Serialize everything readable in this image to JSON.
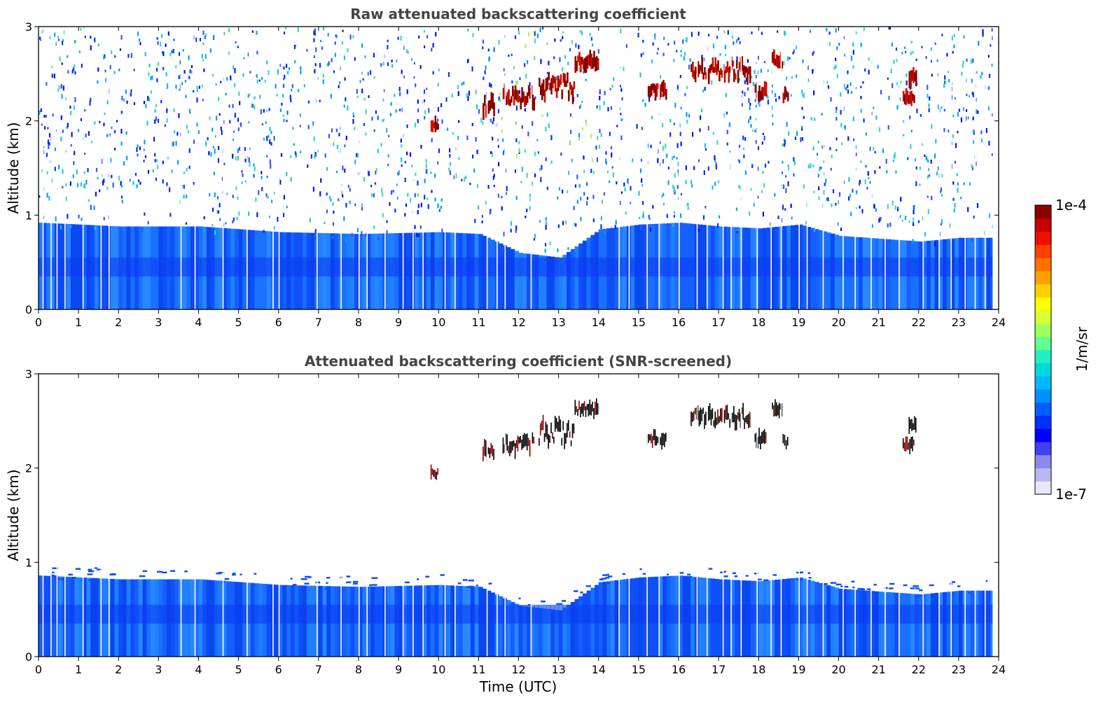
{
  "chart_data": [
    {
      "type": "heatmap",
      "title": "Raw attenuated backscattering coefficient",
      "xlabel": "",
      "ylabel": "Altitude (km)",
      "xlim": [
        0,
        24
      ],
      "ylim": [
        0,
        3
      ],
      "x_ticks": [
        "0",
        "1",
        "2",
        "3",
        "4",
        "5",
        "6",
        "7",
        "8",
        "9",
        "10",
        "11",
        "12",
        "13",
        "14",
        "15",
        "16",
        "17",
        "18",
        "19",
        "20",
        "21",
        "22",
        "23",
        "24"
      ],
      "y_ticks": [
        "0",
        "1",
        "2",
        "3"
      ],
      "screened": false,
      "boundary_layer_top_km": [
        [
          0,
          0.92
        ],
        [
          2,
          0.88
        ],
        [
          4,
          0.88
        ],
        [
          6,
          0.82
        ],
        [
          8,
          0.8
        ],
        [
          10,
          0.82
        ],
        [
          11,
          0.8
        ],
        [
          12,
          0.6
        ],
        [
          13,
          0.55
        ],
        [
          14,
          0.85
        ],
        [
          15,
          0.9
        ],
        [
          16,
          0.92
        ],
        [
          17,
          0.88
        ],
        [
          18,
          0.86
        ],
        [
          19,
          0.9
        ],
        [
          20,
          0.78
        ],
        [
          21,
          0.75
        ],
        [
          22,
          0.72
        ],
        [
          23,
          0.76
        ],
        [
          23.8,
          0.76
        ]
      ],
      "cloud_layers": [
        {
          "t_start": 9.8,
          "t_end": 10.0,
          "z_low_km": 1.88,
          "z_high_km": 2.0
        },
        {
          "t_start": 11.1,
          "t_end": 11.4,
          "z_low_km": 2.0,
          "z_high_km": 2.3
        },
        {
          "t_start": 11.6,
          "t_end": 12.4,
          "z_low_km": 2.1,
          "z_high_km": 2.4
        },
        {
          "t_start": 12.5,
          "t_end": 13.4,
          "z_low_km": 2.15,
          "z_high_km": 2.6
        },
        {
          "t_start": 13.4,
          "t_end": 14.0,
          "z_low_km": 2.52,
          "z_high_km": 2.72
        },
        {
          "t_start": 15.2,
          "t_end": 15.7,
          "z_low_km": 2.22,
          "z_high_km": 2.42
        },
        {
          "t_start": 16.3,
          "t_end": 17.8,
          "z_low_km": 2.4,
          "z_high_km": 2.68
        },
        {
          "t_start": 17.9,
          "t_end": 18.2,
          "z_low_km": 2.2,
          "z_high_km": 2.4
        },
        {
          "t_start": 18.3,
          "t_end": 18.6,
          "z_low_km": 2.55,
          "z_high_km": 2.72
        },
        {
          "t_start": 18.6,
          "t_end": 18.75,
          "z_low_km": 2.2,
          "z_high_km": 2.35
        },
        {
          "t_start": 21.6,
          "t_end": 21.9,
          "z_low_km": 2.2,
          "z_high_km": 2.3
        },
        {
          "t_start": 21.75,
          "t_end": 21.95,
          "z_low_km": 2.38,
          "z_high_km": 2.52
        }
      ],
      "gap_times_h": [
        0.1,
        0.3,
        0.45,
        0.65,
        1.1,
        1.55,
        1.75,
        3.55,
        3.9,
        4.6,
        5.2,
        5.85,
        6.0,
        6.95,
        7.55,
        8.0,
        8.2,
        8.65,
        9.1,
        9.35,
        9.6,
        10.15,
        10.4,
        11.2,
        11.45,
        11.65,
        12.3,
        14.5,
        14.75,
        15.2,
        15.5,
        16.0,
        16.45,
        16.7,
        17.1,
        17.3,
        17.55,
        17.95,
        18.3,
        18.55,
        19.0,
        19.2,
        19.6,
        20.1,
        20.4,
        20.8,
        21.15,
        21.5,
        22.1,
        22.5,
        22.8,
        23.15,
        23.4,
        23.65
      ]
    },
    {
      "type": "heatmap",
      "title": "Attenuated backscattering coefficient (SNR-screened)",
      "xlabel": "Time (UTC)",
      "ylabel": "Altitude (km)",
      "xlim": [
        0,
        24
      ],
      "ylim": [
        0,
        3
      ],
      "x_ticks": [
        "0",
        "1",
        "2",
        "3",
        "4",
        "5",
        "6",
        "7",
        "8",
        "9",
        "10",
        "11",
        "12",
        "13",
        "14",
        "15",
        "16",
        "17",
        "18",
        "19",
        "20",
        "21",
        "22",
        "23",
        "24"
      ],
      "y_ticks": [
        "0",
        "1",
        "2",
        "3"
      ],
      "screened": true
    }
  ],
  "colorbar": {
    "label": "1/m/sr",
    "max_label": "1e-4",
    "min_label": "1e-7",
    "colors": [
      "#e8e8f8",
      "#b8b8f0",
      "#8a8aec",
      "#4040f0",
      "#0000ff",
      "#0030ff",
      "#0060ff",
      "#0090ff",
      "#00b8ff",
      "#00d8e0",
      "#20f0c0",
      "#60ff90",
      "#a0ff60",
      "#d8ff30",
      "#ffff00",
      "#ffd000",
      "#ffa000",
      "#ff7000",
      "#ff4000",
      "#f01000",
      "#c80000",
      "#8b0000"
    ]
  }
}
